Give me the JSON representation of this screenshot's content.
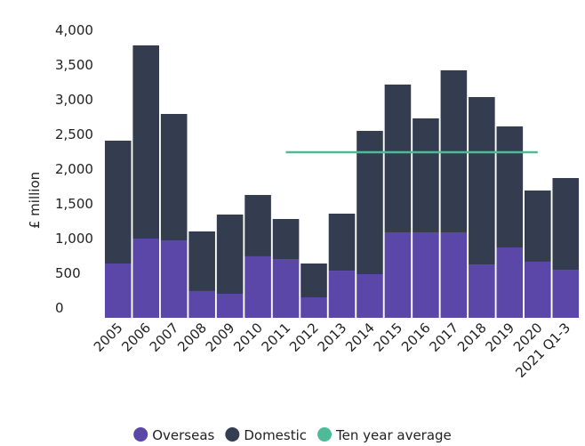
{
  "chart_data": {
    "type": "stacked_bar",
    "y_label": "£ million",
    "categories": [
      "2005",
      "2006",
      "2007",
      "2008",
      "2009",
      "2010",
      "2011",
      "2012",
      "2013",
      "2014",
      "2015",
      "2016",
      "2017",
      "2018",
      "2019",
      "2020",
      "2021 Q1-3"
    ],
    "series": [
      {
        "name": "Overseas",
        "color": "#5b47a8",
        "values": [
          782,
          1141,
          1115,
          385,
          346,
          885,
          846,
          295,
          679,
          628,
          1231,
          1231,
          1231,
          769,
          1013,
          808,
          692
        ]
      },
      {
        "name": "Domestic",
        "color": "#333d4f",
        "values": [
          1769,
          2782,
          1821,
          859,
          1141,
          884,
          577,
          487,
          821,
          2064,
          2128,
          1641,
          2333,
          2410,
          1743,
          1025,
          1321
        ]
      },
      {
        "name": "Ten year average",
        "color": "#4dbb98",
        "kind": "line",
        "values": [
          null,
          null,
          null,
          null,
          null,
          null,
          2385,
          2385,
          2385,
          2385,
          2385,
          2385,
          2385,
          2385,
          2385,
          2385,
          null
        ]
      }
    ],
    "ylim": [
      0,
      4000
    ],
    "yticks": [
      0,
      500,
      {
        "value": 1000,
        "label": "1,000"
      },
      {
        "value": 1500,
        "label": "1,500"
      },
      {
        "value": 2000,
        "label": "2,000"
      },
      {
        "value": 2500,
        "label": "2,500"
      },
      {
        "value": 3000,
        "label": "3,000"
      },
      {
        "value": 3500,
        "label": "3,500"
      },
      {
        "value": 4000,
        "label": "4,000"
      }
    ],
    "grid": false,
    "legend": "bottom"
  }
}
